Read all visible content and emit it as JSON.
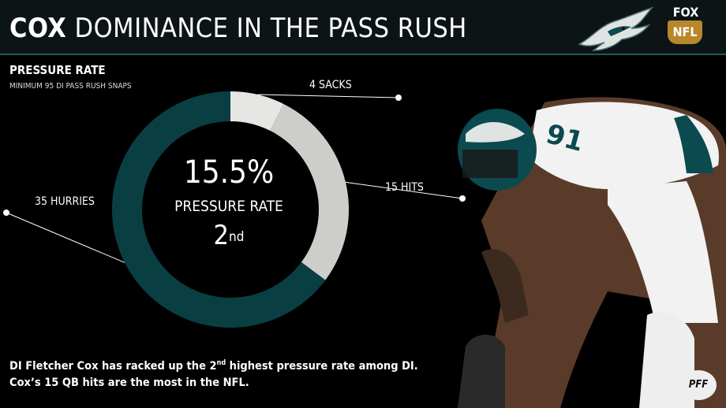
{
  "header": {
    "title_bold": "COX",
    "title_rest": " DOMINANCE IN THE PASS RUSH",
    "fox_top": "FOX",
    "fox_bottom": "NFL"
  },
  "subhead": "PRESSURE RATE",
  "subnote": "MINIMUM 95 DI PASS RUSH SNAPS",
  "center": {
    "value": "15.5%",
    "label": "PRESSURE RATE",
    "rank_num": "2",
    "rank_suffix": "nd"
  },
  "chart_data": {
    "type": "pie",
    "title": "PRESSURE RATE",
    "slices": [
      {
        "label": "4 SACKS",
        "value": 4,
        "color": "#e6e7e4"
      },
      {
        "label": "15 HITS",
        "value": 15,
        "color": "#cdceca"
      },
      {
        "label": "35 HURRIES",
        "value": 35,
        "color": "#093f43"
      }
    ]
  },
  "footnote": {
    "part1": "DI Fletcher Cox has racked up the 2",
    "sup": "nd",
    "part2": " highest pressure rate among DI. Cox’s 15 QB hits are the most in the NFL."
  },
  "badge": "PFF",
  "colors": {
    "header_bg": "#0d1416",
    "teal": "#093f43",
    "accent_rule": "#1d5b5f"
  }
}
